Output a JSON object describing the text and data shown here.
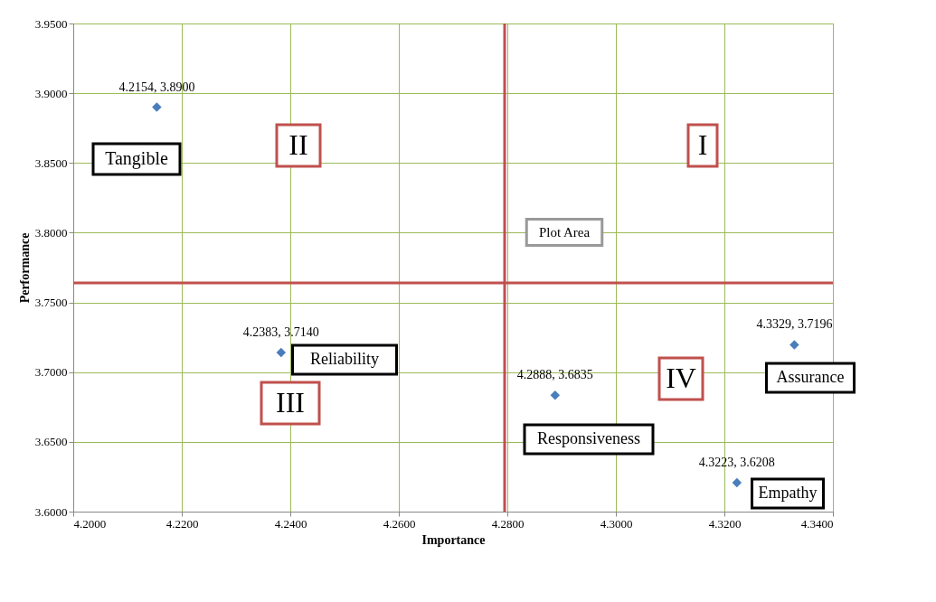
{
  "chart_data": {
    "type": "scatter",
    "xlabel": "Importance",
    "ylabel": "Performance",
    "x": [
      4.2154,
      4.2383,
      4.2888,
      4.3329,
      4.3223
    ],
    "values": [
      3.89,
      3.714,
      3.6835,
      3.7196,
      3.6208
    ],
    "value_labels": [
      "4.2154,  3.8900",
      "4.2383,  3.7140",
      "4.2888,  3.6835",
      "4.3329,  3.7196",
      "4.3223,  3.6208"
    ],
    "color": "#4a7ebb",
    "marker": "diamond",
    "xlim": [
      4.2,
      4.34
    ],
    "xticks": [
      {
        "value": 4.2,
        "label": "4.2000"
      },
      {
        "value": 4.22,
        "label": "4.2200"
      },
      {
        "value": 4.24,
        "label": "4.2400"
      },
      {
        "value": 4.26,
        "label": "4.2600"
      },
      {
        "value": 4.28,
        "label": "4.2800"
      },
      {
        "value": 4.3,
        "label": "4.3000"
      },
      {
        "value": 4.32,
        "label": "4.3200"
      },
      {
        "value": 4.34,
        "label": "4.3400"
      }
    ],
    "ylim": [
      3.6,
      3.95
    ],
    "yticks": [
      {
        "value": 3.6,
        "label": "3.6000"
      },
      {
        "value": 3.65,
        "label": "3.6500"
      },
      {
        "value": 3.7,
        "label": "3.7000"
      },
      {
        "value": 3.75,
        "label": "3.7500"
      },
      {
        "value": 3.8,
        "label": "3.8000"
      },
      {
        "value": 3.85,
        "label": "3.8500"
      },
      {
        "value": 3.9,
        "label": "3.9000"
      },
      {
        "value": 3.95,
        "label": "3.9500"
      }
    ],
    "grid": true,
    "ref_lines": [
      {
        "axis": "x",
        "value": 4.2795,
        "color": "#c0504d"
      },
      {
        "axis": "y",
        "value": 3.764,
        "color": "#c0504d"
      }
    ],
    "annotations": [
      "Tangible",
      "Reliability",
      "Responsiveness",
      "Assurance",
      "Empathy",
      "I",
      "II",
      "III",
      "IV",
      "Plot Area"
    ]
  }
}
